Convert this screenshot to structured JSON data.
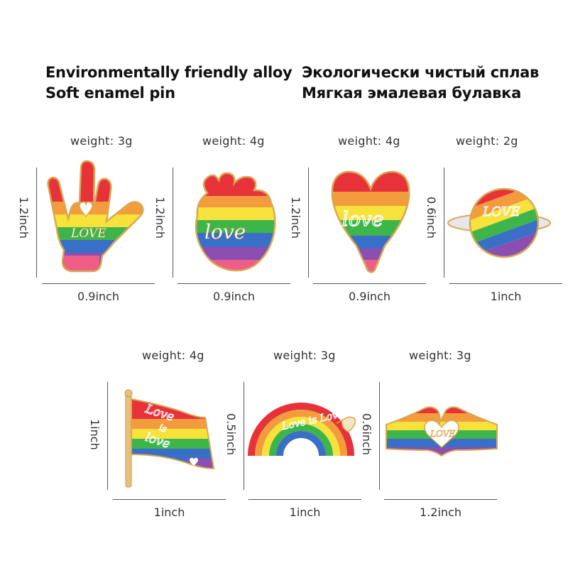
{
  "header": {
    "en_line1": "Environmentally friendly alloy",
    "en_line2": "Soft enamel pin",
    "ru_line1": "Экологически чистый сплав",
    "ru_line2": "Мягкая эмалевая булавка"
  },
  "pins": [
    {
      "id": "hand",
      "weight": "weight: 3g",
      "height": "1.2inch",
      "width": "0.9inch",
      "text": "LOVE"
    },
    {
      "id": "heart-organ",
      "weight": "weight: 4g",
      "height": "1.2inch",
      "width": "0.9inch",
      "text": "love"
    },
    {
      "id": "heart",
      "weight": "weight: 4g",
      "height": "1.2inch",
      "width": "0.9inch",
      "text": "love"
    },
    {
      "id": "planet",
      "weight": "weight: 2g",
      "height": "0.6inch",
      "width": "1inch",
      "text": "LOVE"
    },
    {
      "id": "flag",
      "weight": "weight: 4g",
      "height": "1inch",
      "width": "1inch",
      "text1": "Love",
      "text2": "is",
      "text3": "love"
    },
    {
      "id": "rainbow",
      "weight": "weight: 3g",
      "height": "0.5inch",
      "width": "1inch",
      "text": "Love is Love"
    },
    {
      "id": "heart-hands",
      "weight": "weight: 3g",
      "height": "0.6inch",
      "width": "1.2inch",
      "text": "LOVE"
    }
  ],
  "colors": {
    "red": "#e8323a",
    "orange": "#f39c3d",
    "yellow": "#f7e13b",
    "green": "#3db54a",
    "blue": "#3a6fc7",
    "purple": "#8a4fb0",
    "pink": "#ee5f88",
    "gold": "#d9a854"
  }
}
